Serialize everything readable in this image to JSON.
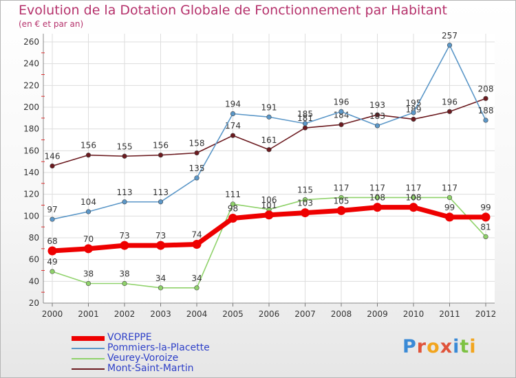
{
  "chart_data": {
    "type": "line",
    "title": "Evolution de la Dotation Globale de Fonctionnement par Habitant",
    "subtitle": "(en € et par an)",
    "x": [
      "2000",
      "2001",
      "2002",
      "2003",
      "2004",
      "2005",
      "2006",
      "2007",
      "2008",
      "2009",
      "2010",
      "2011",
      "2012"
    ],
    "ylim": [
      20,
      260
    ],
    "yticks": [
      20,
      40,
      60,
      80,
      100,
      120,
      140,
      160,
      180,
      200,
      220,
      240,
      260
    ],
    "grid": true,
    "legend_position": "bottom-left",
    "series": [
      {
        "name": "Mont-Saint-Martin",
        "color": "#6b1a1f",
        "values": [
          146,
          156,
          155,
          156,
          158,
          174,
          161,
          181,
          184,
          193,
          189,
          196,
          208
        ]
      },
      {
        "name": "Pommiers-la-Placette",
        "color": "#5b97c8",
        "values": [
          97,
          104,
          113,
          113,
          135,
          194,
          191,
          185,
          196,
          183,
          195,
          257,
          188
        ]
      },
      {
        "name": "Veurey-Voroize",
        "color": "#8fd26a",
        "values": [
          49,
          38,
          38,
          34,
          34,
          111,
          106,
          115,
          117,
          117,
          117,
          117,
          81
        ]
      },
      {
        "name": "VOREPPE",
        "color": "#ee0000",
        "values": [
          68,
          70,
          73,
          73,
          74,
          98,
          101,
          103,
          105,
          108,
          108,
          99,
          99
        ]
      }
    ]
  },
  "legend": {
    "items": [
      {
        "label": "VOREPPE",
        "color": "#ee0000"
      },
      {
        "label": "Pommiers-la-Placette",
        "color": "#5b97c8"
      },
      {
        "label": "Veurey-Voroize",
        "color": "#8fd26a"
      },
      {
        "label": "Mont-Saint-Martin",
        "color": "#6b1a1f"
      }
    ]
  },
  "logo": {
    "letters": [
      {
        "char": "P",
        "color": "#3a8ad6"
      },
      {
        "char": "r",
        "color": "#e0533a"
      },
      {
        "char": "o",
        "color": "#f2a51e"
      },
      {
        "char": "x",
        "color": "#e0533a"
      },
      {
        "char": "i",
        "color": "#3a8ad6"
      },
      {
        "char": "t",
        "color": "#7dc243"
      },
      {
        "char": "i",
        "color": "#f2a51e"
      }
    ]
  }
}
